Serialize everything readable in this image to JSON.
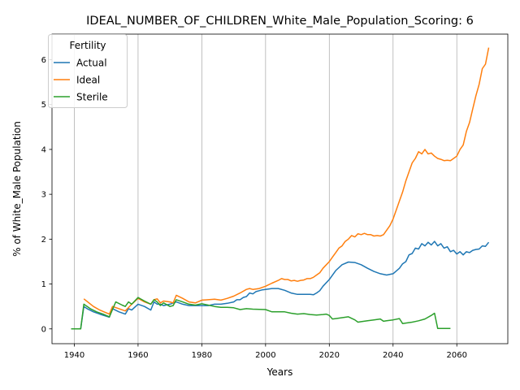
{
  "chart_data": {
    "type": "line",
    "title": "IDEAL_NUMBER_OF_CHILDREN_White_Male_Population_Scoring: 6",
    "xlabel": "Years",
    "ylabel": "% of White_Male Population",
    "xlim": [
      1933,
      2076
    ],
    "ylim": [
      -0.33,
      6.57
    ],
    "xticks": [
      1940,
      1960,
      1980,
      2000,
      2020,
      2040,
      2060
    ],
    "yticks": [
      0,
      1,
      2,
      3,
      4,
      5,
      6
    ],
    "grid": "x-only",
    "legend": {
      "title": "Fertility",
      "placement": "top-left"
    },
    "series": [
      {
        "name": "Actual",
        "color": "#1f77b4",
        "points": [
          [
            1939,
            0
          ],
          [
            1942,
            0
          ],
          [
            1943,
            0.5
          ],
          [
            1944,
            0.45
          ],
          [
            1946,
            0.38
          ],
          [
            1948,
            0.33
          ],
          [
            1951,
            0.26
          ],
          [
            1952,
            0.45
          ],
          [
            1954,
            0.38
          ],
          [
            1956,
            0.33
          ],
          [
            1957,
            0.45
          ],
          [
            1958,
            0.42
          ],
          [
            1960,
            0.55
          ],
          [
            1962,
            0.5
          ],
          [
            1964,
            0.42
          ],
          [
            1965,
            0.6
          ],
          [
            1966,
            0.55
          ],
          [
            1967,
            0.55
          ],
          [
            1968,
            0.52
          ],
          [
            1970,
            0.55
          ],
          [
            1972,
            0.6
          ],
          [
            1974,
            0.55
          ],
          [
            1976,
            0.52
          ],
          [
            1978,
            0.52
          ],
          [
            1980,
            0.52
          ],
          [
            1982,
            0.52
          ],
          [
            1984,
            0.55
          ],
          [
            1986,
            0.55
          ],
          [
            1988,
            0.57
          ],
          [
            1990,
            0.6
          ],
          [
            1991,
            0.65
          ],
          [
            1992,
            0.65
          ],
          [
            1993,
            0.7
          ],
          [
            1994,
            0.72
          ],
          [
            1995,
            0.8
          ],
          [
            1996,
            0.78
          ],
          [
            1997,
            0.83
          ],
          [
            1998,
            0.85
          ],
          [
            1999,
            0.87
          ],
          [
            2000,
            0.88
          ],
          [
            2002,
            0.9
          ],
          [
            2004,
            0.9
          ],
          [
            2006,
            0.86
          ],
          [
            2008,
            0.8
          ],
          [
            2010,
            0.77
          ],
          [
            2012,
            0.77
          ],
          [
            2014,
            0.77
          ],
          [
            2015,
            0.76
          ],
          [
            2016,
            0.8
          ],
          [
            2017,
            0.85
          ],
          [
            2018,
            0.95
          ],
          [
            2020,
            1.1
          ],
          [
            2022,
            1.3
          ],
          [
            2024,
            1.43
          ],
          [
            2026,
            1.49
          ],
          [
            2028,
            1.48
          ],
          [
            2030,
            1.43
          ],
          [
            2032,
            1.35
          ],
          [
            2034,
            1.28
          ],
          [
            2036,
            1.23
          ],
          [
            2038,
            1.2
          ],
          [
            2040,
            1.23
          ],
          [
            2042,
            1.35
          ],
          [
            2043,
            1.45
          ],
          [
            2044,
            1.5
          ],
          [
            2045,
            1.65
          ],
          [
            2046,
            1.68
          ],
          [
            2047,
            1.8
          ],
          [
            2048,
            1.78
          ],
          [
            2049,
            1.9
          ],
          [
            2050,
            1.85
          ],
          [
            2051,
            1.93
          ],
          [
            2052,
            1.87
          ],
          [
            2053,
            1.95
          ],
          [
            2054,
            1.85
          ],
          [
            2055,
            1.9
          ],
          [
            2056,
            1.8
          ],
          [
            2057,
            1.83
          ],
          [
            2058,
            1.72
          ],
          [
            2059,
            1.75
          ],
          [
            2060,
            1.67
          ],
          [
            2061,
            1.72
          ],
          [
            2062,
            1.65
          ],
          [
            2063,
            1.72
          ],
          [
            2064,
            1.7
          ],
          [
            2065,
            1.75
          ],
          [
            2066,
            1.77
          ],
          [
            2067,
            1.78
          ],
          [
            2068,
            1.85
          ],
          [
            2069,
            1.84
          ],
          [
            2070,
            1.93
          ]
        ]
      },
      {
        "name": "Ideal",
        "color": "#ff7f0e",
        "points": [
          [
            1943,
            0.67
          ],
          [
            1946,
            0.5
          ],
          [
            1948,
            0.42
          ],
          [
            1951,
            0.33
          ],
          [
            1952,
            0.5
          ],
          [
            1954,
            0.45
          ],
          [
            1956,
            0.4
          ],
          [
            1958,
            0.55
          ],
          [
            1960,
            0.68
          ],
          [
            1962,
            0.6
          ],
          [
            1964,
            0.55
          ],
          [
            1965,
            0.65
          ],
          [
            1966,
            0.67
          ],
          [
            1967,
            0.58
          ],
          [
            1968,
            0.62
          ],
          [
            1970,
            0.6
          ],
          [
            1971,
            0.58
          ],
          [
            1972,
            0.75
          ],
          [
            1974,
            0.68
          ],
          [
            1976,
            0.6
          ],
          [
            1978,
            0.58
          ],
          [
            1980,
            0.64
          ],
          [
            1982,
            0.65
          ],
          [
            1984,
            0.66
          ],
          [
            1986,
            0.64
          ],
          [
            1987,
            0.66
          ],
          [
            1988,
            0.68
          ],
          [
            1990,
            0.73
          ],
          [
            1992,
            0.8
          ],
          [
            1994,
            0.88
          ],
          [
            1995,
            0.9
          ],
          [
            1996,
            0.88
          ],
          [
            1998,
            0.9
          ],
          [
            2000,
            0.95
          ],
          [
            2002,
            1.02
          ],
          [
            2003,
            1.05
          ],
          [
            2004,
            1.08
          ],
          [
            2005,
            1.12
          ],
          [
            2006,
            1.1
          ],
          [
            2007,
            1.1
          ],
          [
            2008,
            1.07
          ],
          [
            2009,
            1.08
          ],
          [
            2010,
            1.06
          ],
          [
            2011,
            1.08
          ],
          [
            2012,
            1.09
          ],
          [
            2013,
            1.12
          ],
          [
            2014,
            1.12
          ],
          [
            2015,
            1.15
          ],
          [
            2016,
            1.2
          ],
          [
            2017,
            1.25
          ],
          [
            2018,
            1.35
          ],
          [
            2020,
            1.5
          ],
          [
            2021,
            1.6
          ],
          [
            2022,
            1.7
          ],
          [
            2023,
            1.8
          ],
          [
            2024,
            1.85
          ],
          [
            2025,
            1.95
          ],
          [
            2026,
            2.0
          ],
          [
            2027,
            2.08
          ],
          [
            2028,
            2.05
          ],
          [
            2029,
            2.12
          ],
          [
            2030,
            2.1
          ],
          [
            2031,
            2.13
          ],
          [
            2032,
            2.1
          ],
          [
            2033,
            2.1
          ],
          [
            2034,
            2.07
          ],
          [
            2035,
            2.08
          ],
          [
            2036,
            2.07
          ],
          [
            2037,
            2.1
          ],
          [
            2038,
            2.2
          ],
          [
            2039,
            2.3
          ],
          [
            2040,
            2.45
          ],
          [
            2041,
            2.65
          ],
          [
            2042,
            2.85
          ],
          [
            2043,
            3.05
          ],
          [
            2044,
            3.3
          ],
          [
            2045,
            3.5
          ],
          [
            2046,
            3.7
          ],
          [
            2047,
            3.8
          ],
          [
            2048,
            3.95
          ],
          [
            2049,
            3.9
          ],
          [
            2050,
            4.0
          ],
          [
            2051,
            3.9
          ],
          [
            2052,
            3.92
          ],
          [
            2053,
            3.85
          ],
          [
            2054,
            3.8
          ],
          [
            2055,
            3.78
          ],
          [
            2056,
            3.75
          ],
          [
            2057,
            3.76
          ],
          [
            2058,
            3.75
          ],
          [
            2059,
            3.8
          ],
          [
            2060,
            3.85
          ],
          [
            2061,
            4.0
          ],
          [
            2062,
            4.1
          ],
          [
            2063,
            4.4
          ],
          [
            2064,
            4.6
          ],
          [
            2065,
            4.9
          ],
          [
            2066,
            5.2
          ],
          [
            2067,
            5.45
          ],
          [
            2068,
            5.8
          ],
          [
            2069,
            5.9
          ],
          [
            2070,
            6.27
          ]
        ]
      },
      {
        "name": "Sterile",
        "color": "#2ca02c",
        "points": [
          [
            1939,
            0
          ],
          [
            1942,
            0
          ],
          [
            1943,
            0.55
          ],
          [
            1945,
            0.45
          ],
          [
            1947,
            0.38
          ],
          [
            1949,
            0.33
          ],
          [
            1951,
            0.27
          ],
          [
            1953,
            0.6
          ],
          [
            1955,
            0.53
          ],
          [
            1956,
            0.5
          ],
          [
            1957,
            0.6
          ],
          [
            1958,
            0.55
          ],
          [
            1960,
            0.7
          ],
          [
            1962,
            0.62
          ],
          [
            1964,
            0.55
          ],
          [
            1965,
            0.65
          ],
          [
            1966,
            0.6
          ],
          [
            1967,
            0.52
          ],
          [
            1968,
            0.58
          ],
          [
            1970,
            0.5
          ],
          [
            1971,
            0.52
          ],
          [
            1972,
            0.65
          ],
          [
            1974,
            0.6
          ],
          [
            1976,
            0.55
          ],
          [
            1978,
            0.53
          ],
          [
            1980,
            0.56
          ],
          [
            1982,
            0.53
          ],
          [
            1984,
            0.5
          ],
          [
            1986,
            0.48
          ],
          [
            1988,
            0.48
          ],
          [
            1990,
            0.47
          ],
          [
            1992,
            0.43
          ],
          [
            1994,
            0.45
          ],
          [
            1996,
            0.44
          ],
          [
            2000,
            0.43
          ],
          [
            2002,
            0.38
          ],
          [
            2004,
            0.38
          ],
          [
            2006,
            0.38
          ],
          [
            2008,
            0.35
          ],
          [
            2010,
            0.33
          ],
          [
            2012,
            0.34
          ],
          [
            2014,
            0.32
          ],
          [
            2016,
            0.31
          ],
          [
            2018,
            0.32
          ],
          [
            2019,
            0.33
          ],
          [
            2020,
            0.3
          ],
          [
            2021,
            0.22
          ],
          [
            2022,
            0.23
          ],
          [
            2024,
            0.25
          ],
          [
            2026,
            0.27
          ],
          [
            2028,
            0.2
          ],
          [
            2029,
            0.15
          ],
          [
            2030,
            0.16
          ],
          [
            2032,
            0.18
          ],
          [
            2034,
            0.2
          ],
          [
            2036,
            0.22
          ],
          [
            2037,
            0.17
          ],
          [
            2038,
            0.18
          ],
          [
            2040,
            0.2
          ],
          [
            2042,
            0.23
          ],
          [
            2043,
            0.12
          ],
          [
            2044,
            0.13
          ],
          [
            2046,
            0.15
          ],
          [
            2048,
            0.18
          ],
          [
            2050,
            0.22
          ],
          [
            2052,
            0.3
          ],
          [
            2053,
            0.35
          ],
          [
            2054,
            0.01
          ],
          [
            2056,
            0.01
          ],
          [
            2058,
            0.01
          ]
        ]
      }
    ]
  }
}
